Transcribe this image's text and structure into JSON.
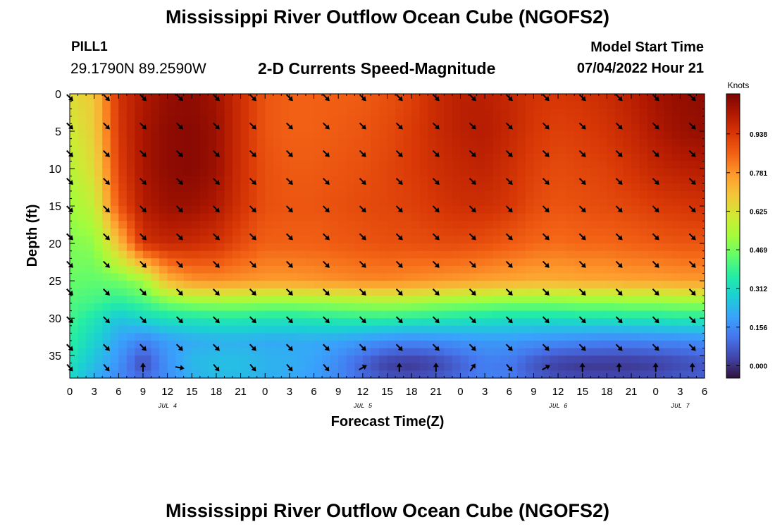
{
  "header": {
    "title": "Mississippi River Outflow Ocean Cube (NGOFS2)",
    "station": "PILL1",
    "coordinates": "29.1790N  89.2590W",
    "subtitle": "2-D Currents Speed-Magnitude",
    "model_start_label": "Model Start Time",
    "model_start_value": "07/04/2022 Hour 21"
  },
  "footer": {
    "title": "Mississippi River Outflow Ocean Cube (NGOFS2)"
  },
  "chart_data": {
    "type": "heatmap",
    "title": "2-D Currents Speed-Magnitude",
    "xlabel": "Forecast Time(Z)",
    "ylabel": "Depth (ft)",
    "x_tick_labels": [
      "0",
      "3",
      "6",
      "9",
      "12",
      "15",
      "18",
      "21",
      "0",
      "3",
      "6",
      "9",
      "12",
      "15",
      "18",
      "21",
      "0",
      "3",
      "6",
      "9",
      "12",
      "15",
      "18",
      "21",
      "0",
      "3",
      "6"
    ],
    "x_hour_offsets": [
      0,
      3,
      6,
      9,
      12,
      15,
      18,
      21,
      24,
      27,
      30,
      33,
      36,
      39,
      42,
      45,
      48,
      51,
      54,
      57,
      60,
      63,
      66,
      69,
      72,
      75,
      78
    ],
    "x_range_hours": [
      0,
      78
    ],
    "date_labels": [
      {
        "label": "JUL 4",
        "hour": 12
      },
      {
        "label": "JUL 5",
        "hour": 36
      },
      {
        "label": "JUL 6",
        "hour": 60
      },
      {
        "label": "JUL 7",
        "hour": 75
      }
    ],
    "y_tick_labels": [
      "0",
      "5",
      "10",
      "15",
      "20",
      "25",
      "30",
      "35"
    ],
    "y_ticks": [
      0,
      5,
      10,
      15,
      20,
      25,
      30,
      35
    ],
    "y_range": [
      0,
      38
    ],
    "colorbar": {
      "unit_label": "Knots",
      "tick_labels": [
        "0.000",
        "0.156",
        "0.312",
        "0.469",
        "0.625",
        "0.781",
        "0.938"
      ],
      "ticks": [
        0.0,
        0.156,
        0.312,
        0.469,
        0.625,
        0.781,
        0.938
      ],
      "range": [
        -0.05,
        1.1
      ],
      "colors": [
        "#30123b",
        "#4145ab",
        "#4675ed",
        "#39a2fc",
        "#1bcfd4",
        "#24eca6",
        "#61fc6c",
        "#a4fc3b",
        "#d1e834",
        "#f3c63a",
        "#fe9b2d",
        "#f36315",
        "#d93806",
        "#b11901",
        "#7a0402"
      ]
    },
    "speed_samples": {
      "hours": [
        0,
        3,
        6,
        9,
        12,
        15,
        18,
        21,
        24,
        27,
        30,
        33,
        36,
        39,
        42,
        45,
        48,
        51,
        54,
        57,
        60,
        63,
        66,
        69,
        72,
        75,
        78
      ],
      "depths": [
        0,
        5,
        10,
        15,
        20,
        25,
        28,
        30,
        33,
        36,
        38
      ],
      "values": [
        [
          0.64,
          0.68,
          0.95,
          1.02,
          1.06,
          1.07,
          1.04,
          0.96,
          0.88,
          0.86,
          0.86,
          0.86,
          0.87,
          0.89,
          0.92,
          0.97,
          1.0,
          1.0,
          0.98,
          0.95,
          0.94,
          0.95,
          0.97,
          1.0,
          1.04,
          1.06,
          1.07
        ],
        [
          0.6,
          0.67,
          0.94,
          1.03,
          1.07,
          1.08,
          1.05,
          0.96,
          0.88,
          0.86,
          0.86,
          0.87,
          0.88,
          0.9,
          0.93,
          0.97,
          1.0,
          1.01,
          0.98,
          0.94,
          0.92,
          0.93,
          0.95,
          0.98,
          1.02,
          1.05,
          1.06
        ],
        [
          0.56,
          0.64,
          0.92,
          1.03,
          1.07,
          1.08,
          1.05,
          0.96,
          0.89,
          0.87,
          0.87,
          0.88,
          0.89,
          0.91,
          0.93,
          0.96,
          0.98,
          0.99,
          0.96,
          0.92,
          0.9,
          0.91,
          0.92,
          0.95,
          0.98,
          1.0,
          1.01
        ],
        [
          0.52,
          0.58,
          0.88,
          1.01,
          1.05,
          1.05,
          1.02,
          0.95,
          0.89,
          0.88,
          0.88,
          0.89,
          0.9,
          0.91,
          0.92,
          0.94,
          0.96,
          0.96,
          0.94,
          0.9,
          0.88,
          0.89,
          0.9,
          0.91,
          0.93,
          0.94,
          0.95
        ],
        [
          0.48,
          0.5,
          0.7,
          0.95,
          0.98,
          0.97,
          0.95,
          0.9,
          0.86,
          0.86,
          0.86,
          0.87,
          0.88,
          0.89,
          0.89,
          0.9,
          0.9,
          0.89,
          0.87,
          0.85,
          0.84,
          0.85,
          0.85,
          0.86,
          0.87,
          0.88,
          0.88
        ],
        [
          0.45,
          0.44,
          0.46,
          0.52,
          0.72,
          0.78,
          0.79,
          0.78,
          0.77,
          0.77,
          0.78,
          0.79,
          0.8,
          0.8,
          0.79,
          0.78,
          0.77,
          0.76,
          0.75,
          0.74,
          0.74,
          0.75,
          0.75,
          0.76,
          0.76,
          0.77,
          0.77
        ],
        [
          0.42,
          0.4,
          0.36,
          0.4,
          0.46,
          0.49,
          0.5,
          0.5,
          0.49,
          0.49,
          0.5,
          0.51,
          0.52,
          0.53,
          0.52,
          0.5,
          0.49,
          0.48,
          0.47,
          0.47,
          0.47,
          0.48,
          0.48,
          0.49,
          0.49,
          0.5,
          0.5
        ],
        [
          0.4,
          0.34,
          0.26,
          0.3,
          0.33,
          0.34,
          0.35,
          0.35,
          0.34,
          0.34,
          0.35,
          0.36,
          0.37,
          0.37,
          0.36,
          0.35,
          0.34,
          0.33,
          0.32,
          0.32,
          0.32,
          0.33,
          0.33,
          0.34,
          0.34,
          0.35,
          0.35
        ],
        [
          0.37,
          0.29,
          0.2,
          0.14,
          0.19,
          0.21,
          0.22,
          0.22,
          0.21,
          0.21,
          0.21,
          0.2,
          0.18,
          0.16,
          0.15,
          0.16,
          0.17,
          0.18,
          0.18,
          0.17,
          0.16,
          0.15,
          0.14,
          0.14,
          0.15,
          0.15,
          0.16
        ],
        [
          0.33,
          0.25,
          0.17,
          0.04,
          0.17,
          0.24,
          0.25,
          0.25,
          0.23,
          0.22,
          0.2,
          0.15,
          0.08,
          0.02,
          0.01,
          0.03,
          0.08,
          0.13,
          0.12,
          0.06,
          0.02,
          0.01,
          0.01,
          0.01,
          0.02,
          0.04,
          0.06
        ],
        [
          0.3,
          0.22,
          0.15,
          0.1,
          0.16,
          0.22,
          0.24,
          0.24,
          0.22,
          0.21,
          0.19,
          0.15,
          0.1,
          0.06,
          0.05,
          0.07,
          0.1,
          0.14,
          0.13,
          0.08,
          0.05,
          0.04,
          0.04,
          0.04,
          0.05,
          0.07,
          0.08
        ]
      ]
    },
    "vectors": {
      "hours": [
        0,
        4.5,
        9,
        13.5,
        18,
        22.5,
        27,
        31.5,
        36,
        40.5,
        45,
        49.5,
        54,
        58.5,
        63,
        67.5,
        72,
        76.5
      ],
      "depths": [
        0.5,
        4.3,
        8,
        11.7,
        15.4,
        19.1,
        22.8,
        26.5,
        30.2,
        33.9,
        36.6
      ],
      "direction_deg_rows": [
        [
          135,
          135,
          135,
          135,
          135,
          135,
          135,
          135,
          135,
          135,
          135,
          135,
          135,
          135,
          135,
          135,
          135,
          135
        ],
        [
          135,
          135,
          135,
          135,
          135,
          135,
          135,
          135,
          135,
          135,
          135,
          135,
          135,
          135,
          135,
          135,
          135,
          135
        ],
        [
          135,
          135,
          135,
          135,
          135,
          135,
          135,
          135,
          135,
          135,
          135,
          135,
          135,
          135,
          135,
          135,
          135,
          135
        ],
        [
          135,
          135,
          135,
          135,
          135,
          135,
          135,
          135,
          135,
          135,
          135,
          135,
          135,
          135,
          135,
          135,
          135,
          135
        ],
        [
          135,
          135,
          135,
          135,
          135,
          135,
          135,
          135,
          135,
          135,
          135,
          135,
          135,
          135,
          135,
          135,
          135,
          135
        ],
        [
          135,
          135,
          135,
          135,
          135,
          135,
          135,
          135,
          135,
          135,
          135,
          135,
          135,
          135,
          135,
          135,
          135,
          135
        ],
        [
          135,
          135,
          135,
          135,
          135,
          135,
          135,
          135,
          135,
          135,
          135,
          135,
          135,
          135,
          135,
          135,
          135,
          135
        ],
        [
          135,
          135,
          135,
          135,
          135,
          135,
          135,
          135,
          135,
          135,
          135,
          135,
          135,
          135,
          135,
          135,
          135,
          135
        ],
        [
          135,
          135,
          135,
          135,
          135,
          135,
          135,
          135,
          135,
          135,
          135,
          135,
          135,
          135,
          135,
          135,
          135,
          135
        ],
        [
          135,
          135,
          135,
          135,
          135,
          135,
          135,
          135,
          135,
          135,
          135,
          135,
          135,
          135,
          135,
          135,
          135,
          135
        ],
        [
          140,
          140,
          0,
          100,
          140,
          140,
          140,
          140,
          60,
          0,
          0,
          35,
          140,
          60,
          0,
          0,
          0,
          0
        ]
      ]
    },
    "grid": false,
    "legend_placement": "right"
  }
}
